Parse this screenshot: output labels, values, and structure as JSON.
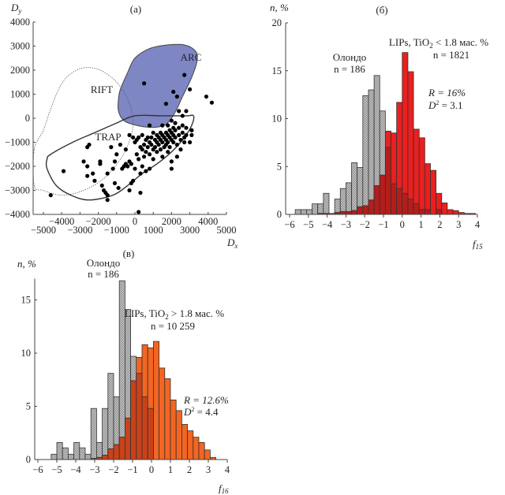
{
  "chart_data": [
    {
      "panel": "(a)",
      "type": "scatter",
      "title": "(a)",
      "xlabel": "D_x",
      "ylabel": "D_y",
      "xlim": [
        -5500,
        5000
      ],
      "ylim": [
        -4000,
        4000
      ],
      "xticks_lower": [
        -5000,
        -3000,
        -1000,
        1000,
        3000,
        5000
      ],
      "xticks_upper": [
        -4000,
        -2000,
        0,
        2000,
        4000
      ],
      "yticks": [
        4000,
        3000,
        2000,
        1000,
        0,
        -1000,
        -2000,
        -3000,
        -4000
      ],
      "regions": [
        {
          "name": "ARC",
          "style": "filled",
          "color": "#7f86c4",
          "outline": [
            [
              -800,
              1200
            ],
            [
              -400,
              1900
            ],
            [
              0,
              2500
            ],
            [
              800,
              2900
            ],
            [
              1800,
              3050
            ],
            [
              2700,
              3050
            ],
            [
              3300,
              2800
            ],
            [
              3400,
              2400
            ],
            [
              3100,
              1700
            ],
            [
              2600,
              900
            ],
            [
              2300,
              400
            ],
            [
              2000,
              0
            ],
            [
              1600,
              -300
            ],
            [
              900,
              -380
            ],
            [
              100,
              -300
            ],
            [
              -600,
              -100
            ],
            [
              -900,
              300
            ],
            [
              -900,
              800
            ]
          ]
        },
        {
          "name": "RIFT",
          "style": "dotted",
          "outline": [
            [
              -5500,
              -1300
            ],
            [
              -5000,
              -500
            ],
            [
              -4600,
              400
            ],
            [
              -4100,
              1300
            ],
            [
              -3600,
              1800
            ],
            [
              -2800,
              2100
            ],
            [
              -1900,
              2000
            ],
            [
              -1000,
              1500
            ],
            [
              -400,
              800
            ],
            [
              -100,
              0
            ],
            [
              -200,
              -700
            ],
            [
              -700,
              -1600
            ],
            [
              -1700,
              -2500
            ],
            [
              -2800,
              -3000
            ],
            [
              -4000,
              -3200
            ],
            [
              -5000,
              -3000
            ],
            [
              -5500,
              -2800
            ]
          ]
        },
        {
          "name": "TRAP",
          "style": "solid",
          "outline": [
            [
              -4600,
              -1500
            ],
            [
              -3400,
              -1000
            ],
            [
              -2200,
              -600
            ],
            [
              -1000,
              -200
            ],
            [
              0,
              100
            ],
            [
              1500,
              100
            ],
            [
              2800,
              100
            ],
            [
              3200,
              100
            ],
            [
              3100,
              -300
            ],
            [
              2700,
              -800
            ],
            [
              2000,
              -1400
            ],
            [
              1200,
              -1900
            ],
            [
              400,
              -2300
            ],
            [
              -400,
              -2800
            ],
            [
              -1200,
              -3200
            ],
            [
              -2500,
              -3400
            ],
            [
              -3500,
              -3200
            ],
            [
              -4300,
              -2800
            ],
            [
              -4800,
              -2100
            ],
            [
              -4800,
              -1700
            ]
          ]
        }
      ],
      "points": [
        [
          -4600,
          -3200
        ],
        [
          -3900,
          -2200
        ],
        [
          -2800,
          -1800
        ],
        [
          -2600,
          -1200
        ],
        [
          -2500,
          -1100
        ],
        [
          -2600,
          -2000
        ],
        [
          -2600,
          -2400
        ],
        [
          -2300,
          -2300
        ],
        [
          -2200,
          -2600
        ],
        [
          -1900,
          -1800
        ],
        [
          -1900,
          -1900
        ],
        [
          -1800,
          -2800
        ],
        [
          -1700,
          -3000
        ],
        [
          -1600,
          -3100
        ],
        [
          -1500,
          -3200
        ],
        [
          -1500,
          -3400
        ],
        [
          -1500,
          -2300
        ],
        [
          -1300,
          -1200
        ],
        [
          -1200,
          -2100
        ],
        [
          -1100,
          -1800
        ],
        [
          -1100,
          -2700
        ],
        [
          -1000,
          -1500
        ],
        [
          -900,
          -2900
        ],
        [
          -800,
          -1100
        ],
        [
          -700,
          -2100
        ],
        [
          -600,
          -2000
        ],
        [
          -500,
          -1300
        ],
        [
          -500,
          -1900
        ],
        [
          -400,
          -2000
        ],
        [
          -300,
          -1800
        ],
        [
          -200,
          -1900
        ],
        [
          -300,
          -3000
        ],
        [
          -200,
          -2700
        ],
        [
          -100,
          -2600
        ],
        [
          -300,
          -700
        ],
        [
          -100,
          -800
        ],
        [
          0,
          -1000
        ],
        [
          0,
          -2100
        ],
        [
          100,
          -900
        ],
        [
          100,
          -1500
        ],
        [
          200,
          -800
        ],
        [
          200,
          -1700
        ],
        [
          300,
          -1200
        ],
        [
          300,
          -2300
        ],
        [
          300,
          -3100
        ],
        [
          200,
          -3900
        ],
        [
          400,
          -700
        ],
        [
          400,
          -1300
        ],
        [
          400,
          -2000
        ],
        [
          500,
          -1100
        ],
        [
          500,
          -1600
        ],
        [
          600,
          -900
        ],
        [
          600,
          -1400
        ],
        [
          600,
          -2200
        ],
        [
          700,
          -800
        ],
        [
          700,
          -1200
        ],
        [
          800,
          -1000
        ],
        [
          800,
          -1500
        ],
        [
          800,
          -2100
        ],
        [
          900,
          -800
        ],
        [
          900,
          -1100
        ],
        [
          1000,
          -600
        ],
        [
          1000,
          -1300
        ],
        [
          1000,
          -1700
        ],
        [
          1100,
          -900
        ],
        [
          1100,
          -1200
        ],
        [
          1200,
          -700
        ],
        [
          1200,
          -1000
        ],
        [
          1200,
          -1400
        ],
        [
          1300,
          -800
        ],
        [
          1300,
          -1100
        ],
        [
          1400,
          -600
        ],
        [
          1400,
          -900
        ],
        [
          1400,
          -1300
        ],
        [
          1500,
          -700
        ],
        [
          1500,
          -1000
        ],
        [
          1500,
          -1600
        ],
        [
          1600,
          -800
        ],
        [
          1600,
          -1200
        ],
        [
          1700,
          -600
        ],
        [
          1700,
          -900
        ],
        [
          1700,
          -1100
        ],
        [
          1800,
          -700
        ],
        [
          1800,
          -1000
        ],
        [
          1800,
          -1400
        ],
        [
          1900,
          -500
        ],
        [
          1900,
          -800
        ],
        [
          1900,
          -1200
        ],
        [
          2000,
          -600
        ],
        [
          2000,
          -900
        ],
        [
          2000,
          -1800
        ],
        [
          2000,
          -2100
        ],
        [
          2100,
          -400
        ],
        [
          2100,
          -700
        ],
        [
          2100,
          -1000
        ],
        [
          2200,
          -500
        ],
        [
          2200,
          -800
        ],
        [
          2300,
          -1100
        ],
        [
          2300,
          -1600
        ],
        [
          2400,
          -400
        ],
        [
          2400,
          -700
        ],
        [
          2500,
          -900
        ],
        [
          2500,
          -1300
        ],
        [
          2600,
          -300
        ],
        [
          2600,
          -600
        ],
        [
          2700,
          -800
        ],
        [
          2700,
          -1000
        ],
        [
          2800,
          -400
        ],
        [
          2800,
          -700
        ],
        [
          3000,
          -1000
        ],
        [
          3100,
          -500
        ],
        [
          3100,
          -700
        ],
        [
          1500,
          -300
        ],
        [
          1800,
          -300
        ],
        [
          2200,
          -200
        ],
        [
          2600,
          100
        ],
        [
          2400,
          300
        ],
        [
          2800,
          300
        ],
        [
          2000,
          -100
        ],
        [
          1700,
          600
        ],
        [
          2100,
          1100
        ],
        [
          2300,
          900
        ],
        [
          2700,
          1800
        ],
        [
          3000,
          1200
        ],
        [
          3900,
          900
        ],
        [
          4200,
          650
        ],
        [
          500,
          1450
        ],
        [
          800,
          -300
        ]
      ]
    },
    {
      "panel": "(б)",
      "type": "bar",
      "title": "(б)",
      "xlabel": "f_15",
      "ylabel": "n, %",
      "xlim": [
        -6,
        4
      ],
      "ylim": [
        0,
        20
      ],
      "xticks": [
        -6,
        -5,
        -4,
        -3,
        -2,
        -1,
        0,
        1,
        2,
        3,
        4
      ],
      "yticks": [
        0,
        5,
        10,
        15,
        20
      ],
      "bin_width": 0.3,
      "series": [
        {
          "name": "Олондо",
          "label_lines": [
            "Олондо",
            "n = 186"
          ],
          "color": "#b9b9b9",
          "pattern": "checkered",
          "bin_starts": [
            -5.7,
            -5.4,
            -5.1,
            -4.8,
            -4.5,
            -4.2,
            -3.9,
            -3.6,
            -3.3,
            -3.0,
            -2.7,
            -2.4,
            -2.1,
            -1.8,
            -1.5,
            -1.2,
            -0.9,
            -0.6,
            -0.3,
            0.0,
            0.3,
            0.6,
            0.9,
            1.2,
            1.5,
            1.8
          ],
          "values": [
            0.5,
            0.5,
            0.5,
            1.1,
            1.1,
            2.2,
            0,
            1.6,
            2.7,
            3.3,
            5.4,
            4.9,
            12.4,
            13.0,
            14.5,
            10.8,
            7.0,
            3.2,
            2.7,
            2.2,
            1.6,
            1.1,
            0.5,
            0.5,
            0,
            0.5
          ]
        },
        {
          "name": "LIPs, TiO2 < 1.8 мас. %",
          "label_lines": [
            "LIPs, TiO₂ < 1.8 мас. %",
            "n = 1821"
          ],
          "color": "#e8201f",
          "bin_starts": [
            -4.5,
            -4.2,
            -3.9,
            -3.6,
            -3.3,
            -3.0,
            -2.7,
            -2.4,
            -2.1,
            -1.8,
            -1.5,
            -1.2,
            -0.9,
            -0.6,
            -0.3,
            0.0,
            0.3,
            0.6,
            0.9,
            1.2,
            1.5,
            1.8,
            2.1,
            2.4,
            2.7,
            3.0,
            3.3,
            3.6
          ],
          "values": [
            0.1,
            0.1,
            0.1,
            0.2,
            0.3,
            0.3,
            0.4,
            0.8,
            0.9,
            1.5,
            3.0,
            4.1,
            8.7,
            8.5,
            11.7,
            16.9,
            14.9,
            8.9,
            8.0,
            5.3,
            4.6,
            2.2,
            1.2,
            0.5,
            0.4,
            0.2,
            0.1,
            0.1
          ]
        }
      ],
      "annotations": [
        "R = 16%",
        "D² = 3.1"
      ]
    },
    {
      "panel": "(в)",
      "type": "bar",
      "title": "(в)",
      "xlabel": "f_16",
      "ylabel": "n, %",
      "xlim": [
        -6,
        4
      ],
      "ylim": [
        0,
        17
      ],
      "xticks": [
        -6,
        -5,
        -4,
        -3,
        -2,
        -1,
        0,
        1,
        2,
        3,
        4
      ],
      "yticks": [
        0,
        5,
        10,
        15
      ],
      "bin_width": 0.3,
      "series": [
        {
          "name": "Олондо",
          "label_lines": [
            "Олондо",
            "n = 186"
          ],
          "color": "#b9b9b9",
          "pattern": "checkered",
          "bin_starts": [
            -5.3,
            -5.0,
            -4.7,
            -4.4,
            -4.1,
            -3.8,
            -3.5,
            -3.2,
            -2.9,
            -2.6,
            -2.3,
            -2.0,
            -1.7,
            -1.4,
            -1.1,
            -0.8,
            -0.5,
            -0.2
          ],
          "values": [
            0.5,
            1.6,
            1.1,
            0.5,
            1.6,
            1.1,
            0.5,
            4.8,
            1.6,
            4.8,
            8.1,
            5.9,
            16.8,
            14.1,
            9.7,
            8.1,
            5.9,
            4.8
          ]
        },
        {
          "name": "LIPs, TiO2 > 1.8 мас. %",
          "label_lines": [
            "LIPs, TiO₂ > 1.8 мас. %",
            "n = 10 259"
          ],
          "color": "#f26522",
          "bin_starts": [
            -3.2,
            -2.9,
            -2.6,
            -2.3,
            -2.0,
            -1.7,
            -1.4,
            -1.1,
            -0.8,
            -0.5,
            -0.2,
            0.1,
            0.4,
            0.7,
            1.0,
            1.3,
            1.6,
            1.9,
            2.2,
            2.5,
            2.8,
            3.1
          ],
          "values": [
            0.1,
            0.2,
            0.4,
            1.0,
            1.4,
            2.1,
            3.9,
            7.4,
            9.6,
            10.8,
            10.5,
            11.1,
            8.6,
            7.6,
            5.6,
            4.6,
            3.3,
            2.7,
            2.1,
            1.6,
            0.9,
            0.2
          ]
        }
      ],
      "annotations": [
        "R = 12.6%",
        "D² = 4.4"
      ]
    }
  ],
  "labels": {
    "a": {
      "title": "(a)",
      "ylabel_main": "D",
      "ylabel_sub": "y",
      "xlabel_main": "D",
      "xlabel_sub": "x",
      "region_arc": "ARC",
      "region_rift": "RIFT",
      "region_trap": "TRAP"
    },
    "b": {
      "title": "(б)",
      "ylabel": "n, %",
      "xlabel_main": "f",
      "xlabel_sub": "15",
      "olondo_name": "Олондо",
      "olondo_n": "n = 186",
      "lips_name_pre": "LIPs, TiO",
      "lips_name_sub": "2",
      "lips_name_post": " < 1.8 мас. %",
      "lips_n": "n = 1821",
      "r": "R = 16%",
      "d_pre": "D",
      "d_sup": "2",
      "d_post": " = 3.1"
    },
    "c": {
      "title": "(в)",
      "ylabel": "n, %",
      "xlabel_main": "f",
      "xlabel_sub": "16",
      "olondo_name": "Олондо",
      "olondo_n": "n = 186",
      "lips_name_pre": "LIPs, TiO",
      "lips_name_sub": "2",
      "lips_name_post": " > 1.8 мас. %",
      "lips_n": "n = 10 259",
      "r": "R = 12.6%",
      "d_pre": "D",
      "d_sup": "2",
      "d_post": " = 4.4"
    }
  }
}
